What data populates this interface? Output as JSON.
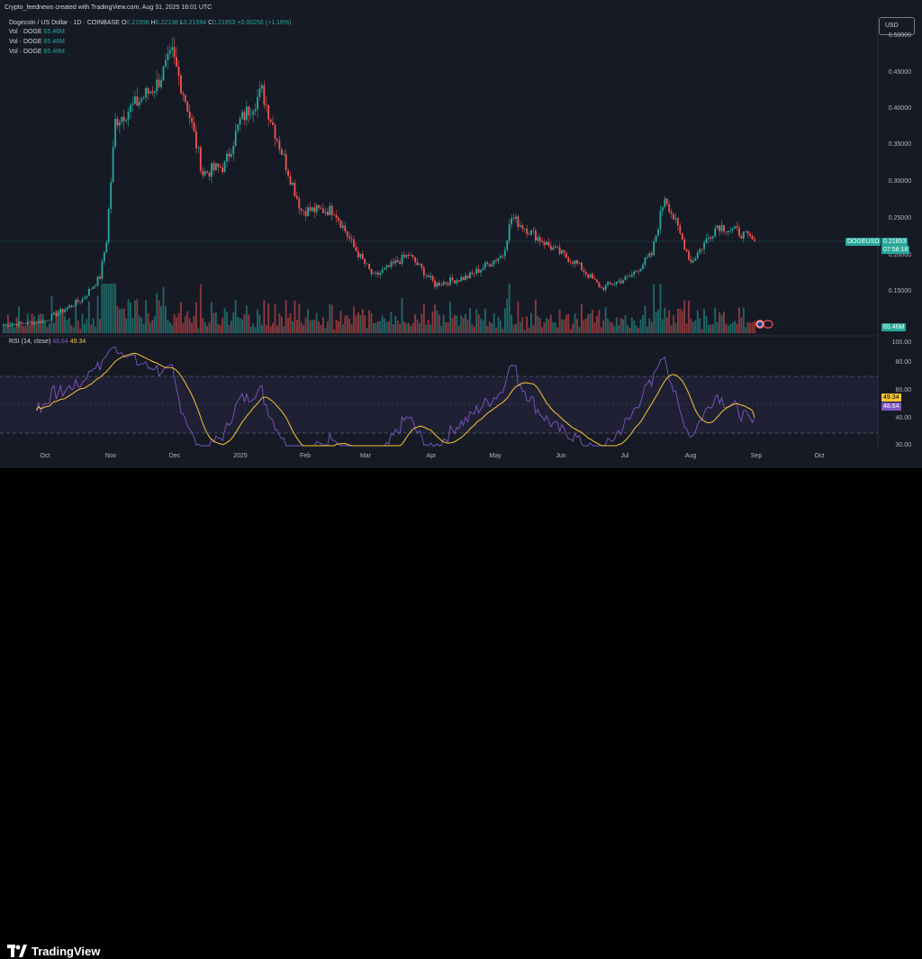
{
  "caption": "Crypto_feednews created with TradingView.com, Aug 31, 2025 16:01 UTC",
  "header": {
    "symbol_title": "Dogecoin / US Dollar · 1D · COINBASE",
    "o_label": "O",
    "o_value": "0.21598",
    "h_label": "H",
    "h_value": "0.22138",
    "l_label": "L",
    "l_value": "0.21594",
    "c_label": "C",
    "c_value": "0.21853",
    "change": "+0.00256 (+1.19%)",
    "vol_rows": [
      {
        "label": "Vol · DOGE",
        "value": "65.46M"
      },
      {
        "label": "Vol · DOGE",
        "value": "65.46M"
      },
      {
        "label": "Vol · DOGE",
        "value": "65.46M"
      }
    ]
  },
  "currency_button": "USD",
  "price_axis": [
    "0.50000",
    "0.45000",
    "0.40000",
    "0.35000",
    "0.30000",
    "0.25000",
    "0.20000",
    "0.15000"
  ],
  "price_tag": {
    "symbol": "DOGEUSD",
    "price": "0.21853",
    "countdown": "07:58:18"
  },
  "volume_tag": "65.46M",
  "rsi": {
    "title": "RSI (14, close)",
    "rsi_value": "48.64",
    "ma_value": "49.34",
    "axis": [
      "100.00",
      "80.00",
      "60.00",
      "40.00",
      "30.00"
    ],
    "bands": {
      "upper": 70,
      "middle": 50,
      "lower": 30
    }
  },
  "time_axis": [
    "Oct",
    "Nov",
    "Dec",
    "2025",
    "Feb",
    "Mar",
    "Apr",
    "May",
    "Jun",
    "Jul",
    "Aug",
    "Sep",
    "Oct"
  ],
  "logo_text": "TradingView",
  "colors": {
    "up": "#26a69a",
    "down": "#ef5350",
    "rsi_line": "#7e57c2",
    "rsi_ma": "#f7c534",
    "background": "#161a25"
  },
  "chart_data": {
    "type": "candlestick",
    "title": "Dogecoin / US Dollar · 1D · COINBASE",
    "ylim": [
      0.12,
      0.51
    ],
    "xlim": [
      "2024-09-22",
      "2025-10-20"
    ],
    "approx_close_path": [
      {
        "date": "2024-09-22",
        "close": 0.105
      },
      {
        "date": "2024-10-10",
        "close": 0.11
      },
      {
        "date": "2024-10-28",
        "close": 0.14
      },
      {
        "date": "2024-11-05",
        "close": 0.17
      },
      {
        "date": "2024-11-08",
        "close": 0.22
      },
      {
        "date": "2024-11-12",
        "close": 0.38
      },
      {
        "date": "2024-11-20",
        "close": 0.4
      },
      {
        "date": "2024-12-01",
        "close": 0.43
      },
      {
        "date": "2024-12-08",
        "close": 0.47
      },
      {
        "date": "2024-12-15",
        "close": 0.4
      },
      {
        "date": "2024-12-22",
        "close": 0.31
      },
      {
        "date": "2025-01-01",
        "close": 0.32
      },
      {
        "date": "2025-01-08",
        "close": 0.38
      },
      {
        "date": "2025-01-18",
        "close": 0.42
      },
      {
        "date": "2025-01-28",
        "close": 0.33
      },
      {
        "date": "2025-02-05",
        "close": 0.26
      },
      {
        "date": "2025-02-20",
        "close": 0.26
      },
      {
        "date": "2025-03-01",
        "close": 0.21
      },
      {
        "date": "2025-03-10",
        "close": 0.17
      },
      {
        "date": "2025-03-26",
        "close": 0.2
      },
      {
        "date": "2025-04-07",
        "close": 0.16
      },
      {
        "date": "2025-04-22",
        "close": 0.17
      },
      {
        "date": "2025-05-08",
        "close": 0.2
      },
      {
        "date": "2025-05-12",
        "close": 0.25
      },
      {
        "date": "2025-05-30",
        "close": 0.21
      },
      {
        "date": "2025-06-10",
        "close": 0.19
      },
      {
        "date": "2025-06-22",
        "close": 0.155
      },
      {
        "date": "2025-07-05",
        "close": 0.17
      },
      {
        "date": "2025-07-15",
        "close": 0.2
      },
      {
        "date": "2025-07-21",
        "close": 0.28
      },
      {
        "date": "2025-08-02",
        "close": 0.19
      },
      {
        "date": "2025-08-14",
        "close": 0.24
      },
      {
        "date": "2025-08-24",
        "close": 0.23
      },
      {
        "date": "2025-08-31",
        "close": 0.21853
      }
    ],
    "rsi_series": {
      "name": "RSI (14, close)",
      "last": 48.64,
      "ma_last": 49.34,
      "ylim": [
        30,
        100
      ]
    }
  }
}
